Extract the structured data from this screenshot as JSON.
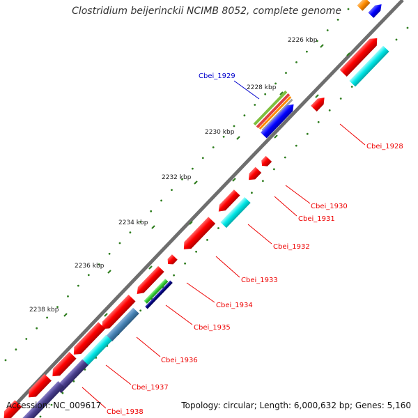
{
  "title": "Clostridium beijerinckii NCIMB 8052, complete genome",
  "footer": {
    "accession": "Accession: NC_009617",
    "stats": "Topology: circular; Length: 6,000,632 bp; Genes: 5,160"
  },
  "colors": {
    "backbone": "#808080",
    "tick": "#2e7d1e",
    "gene_red": "#ff0000",
    "gene_cyan": "#00e6e6",
    "gene_blue": "#0000ff",
    "gene_steel": "#4682b4",
    "gene_slate": "#483d8b",
    "gene_green": "#33cc33",
    "gene_navy": "#000080",
    "gene_orange": "#ff8c00",
    "label_red": "#ee0000",
    "label_blue": "#0000cc"
  },
  "ticks": [
    {
      "label": "2226 kbp"
    },
    {
      "label": "2228 kbp"
    },
    {
      "label": "2230 kbp"
    },
    {
      "label": "2232 kbp"
    },
    {
      "label": "2234 kbp"
    },
    {
      "label": "2236 kbp"
    },
    {
      "label": "2238 kbp"
    }
  ],
  "gene_labels": [
    {
      "text": "Cbei_1928",
      "color": "red"
    },
    {
      "text": "Cbei_1929",
      "color": "blue"
    },
    {
      "text": "Cbei_1930",
      "color": "red"
    },
    {
      "text": "Cbei_1931",
      "color": "red"
    },
    {
      "text": "Cbei_1932",
      "color": "red"
    },
    {
      "text": "Cbei_1933",
      "color": "red"
    },
    {
      "text": "Cbei_1934",
      "color": "red"
    },
    {
      "text": "Cbei_1935",
      "color": "red"
    },
    {
      "text": "Cbei_1936",
      "color": "red"
    },
    {
      "text": "Cbei_1937",
      "color": "red"
    },
    {
      "text": "Cbei_1938",
      "color": "red"
    }
  ]
}
